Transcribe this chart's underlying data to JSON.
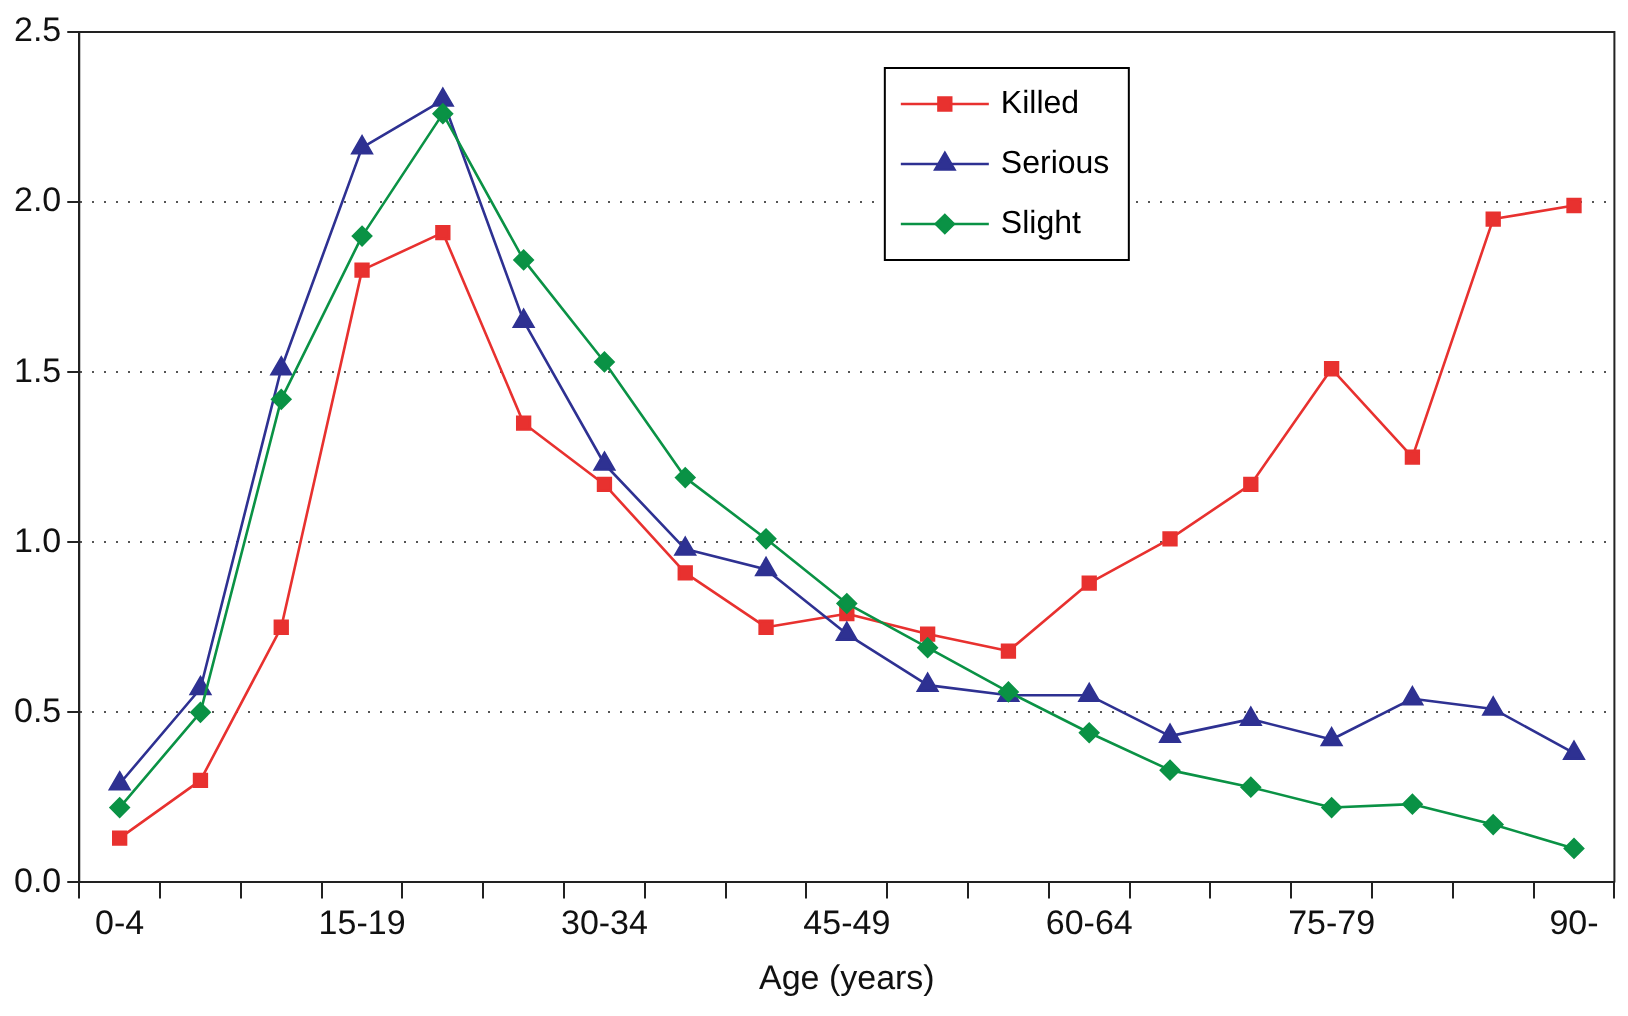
{
  "chart_data": {
    "type": "line",
    "xlabel": "Age (years)",
    "categories": [
      "0-4",
      null,
      null,
      "15-19",
      null,
      null,
      "30-34",
      null,
      null,
      "45-49",
      null,
      null,
      "60-64",
      null,
      null,
      "75-79",
      null,
      null,
      "90-"
    ],
    "series": [
      {
        "name": "Killed",
        "color": "#e8312f",
        "marker": "square",
        "values": [
          0.13,
          0.3,
          0.75,
          1.8,
          1.91,
          1.35,
          1.17,
          0.91,
          0.75,
          0.79,
          0.73,
          0.68,
          0.88,
          1.01,
          1.17,
          1.51,
          1.25,
          1.95,
          1.99
        ]
      },
      {
        "name": "Serious",
        "color": "#2e3192",
        "marker": "triangle",
        "values": [
          0.29,
          0.57,
          1.51,
          2.16,
          2.3,
          1.65,
          1.23,
          0.98,
          0.92,
          0.73,
          0.58,
          0.55,
          0.55,
          0.43,
          0.48,
          0.42,
          0.54,
          0.51,
          0.38
        ]
      },
      {
        "name": "Slight",
        "color": "#0a9245",
        "marker": "diamond",
        "values": [
          0.22,
          0.5,
          1.42,
          1.9,
          2.26,
          1.83,
          1.53,
          1.19,
          1.01,
          0.82,
          0.69,
          0.56,
          0.44,
          0.33,
          0.28,
          0.22,
          0.23,
          0.17,
          0.1
        ]
      }
    ],
    "ylim": [
      0,
      2.5
    ],
    "yticks": [
      {
        "value": 0,
        "label": "0.0"
      },
      0.5,
      {
        "value": 1,
        "label": "1.0"
      },
      1.5,
      {
        "value": 2,
        "label": "2.0"
      },
      2.5
    ],
    "grid": "y",
    "legend": "top"
  }
}
